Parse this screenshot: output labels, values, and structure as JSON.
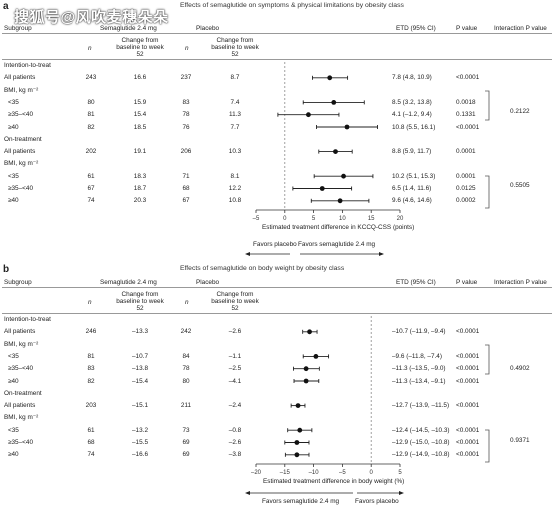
{
  "watermark": "搜狐号@风吹麦穗朵朵",
  "columns": {
    "subgroup": "Subgroup",
    "sema": "Semaglutide 2.4 mg",
    "placebo": "Placebo",
    "n": "n",
    "change": "Change from baseline to week 52",
    "etd": "ETD (95% CI)",
    "p": "P value",
    "interaction": "Interaction P value"
  },
  "panels": [
    {
      "letter": "a",
      "title": "Effects of semaglutide on symptoms & physical limitations by obesity class",
      "xlabel": "Estimated treatment difference in KCCQ-CSS (points)",
      "favors_left": "Favors placebo",
      "favors_right": "Favors semaglutide 2.4 mg",
      "rows": [
        {
          "label": "Intention-to-treat",
          "type": "section"
        },
        {
          "label": "All patients",
          "type": "data",
          "n1": "243",
          "c1": "16.6",
          "n2": "237",
          "c2": "8.7",
          "etd": "7.8 (4.8, 10.9)",
          "p": "<0.0001"
        },
        {
          "label": "BMI, kg m⁻²",
          "type": "section"
        },
        {
          "label": "<35",
          "type": "data",
          "n1": "80",
          "c1": "15.9",
          "n2": "83",
          "c2": "7.4",
          "etd": "8.5 (3.2, 13.8)",
          "p": "0.0018"
        },
        {
          "label": "≥35–<40",
          "type": "data",
          "n1": "81",
          "c1": "15.4",
          "n2": "78",
          "c2": "11.3",
          "etd": "4.1 (–1.2, 9.4)",
          "p": "0.1331"
        },
        {
          "label": "≥40",
          "type": "data",
          "n1": "82",
          "c1": "18.5",
          "n2": "76",
          "c2": "7.7",
          "etd": "10.8 (5.5, 16.1)",
          "p": "<0.0001"
        },
        {
          "label": "On-treatment",
          "type": "section"
        },
        {
          "label": "All patients",
          "type": "data",
          "n1": "202",
          "c1": "19.1",
          "n2": "206",
          "c2": "10.3",
          "etd": "8.8 (5.9, 11.7)",
          "p": "0.0001"
        },
        {
          "label": "BMI, kg m⁻²",
          "type": "section"
        },
        {
          "label": "<35",
          "type": "data",
          "n1": "61",
          "c1": "18.3",
          "n2": "71",
          "c2": "8.1",
          "etd": "10.2 (5.1, 15.3)",
          "p": "0.0001"
        },
        {
          "label": "≥35–<40",
          "type": "data",
          "n1": "67",
          "c1": "18.7",
          "n2": "68",
          "c2": "12.2",
          "etd": "6.5 (1.4, 11.6)",
          "p": "0.0125"
        },
        {
          "label": "≥40",
          "type": "data",
          "n1": "74",
          "c1": "20.3",
          "n2": "67",
          "c2": "10.8",
          "etd": "9.6 (4.6, 14.6)",
          "p": "0.0002"
        }
      ],
      "interactions": [
        "0.2122",
        "0.5505"
      ]
    },
    {
      "letter": "b",
      "title": "Effects of semaglutide on body weight by obesity class",
      "xlabel": "Estimated treatment difference in body weight (%)",
      "favors_left": "Favors semaglutide 2.4 mg",
      "favors_right": "Favors placebo",
      "rows": [
        {
          "label": "Intention-to-treat",
          "type": "section"
        },
        {
          "label": "All patients",
          "type": "data",
          "n1": "246",
          "c1": "–13.3",
          "n2": "242",
          "c2": "–2.6",
          "etd": "–10.7 (–11.9, –9.4)",
          "p": "<0.0001"
        },
        {
          "label": "BMI, kg m⁻²",
          "type": "section"
        },
        {
          "label": "<35",
          "type": "data",
          "n1": "81",
          "c1": "–10.7",
          "n2": "84",
          "c2": "–1.1",
          "etd": "–9.6 (–11.8, –7.4)",
          "p": "<0.0001"
        },
        {
          "label": "≥35–<40",
          "type": "data",
          "n1": "83",
          "c1": "–13.8",
          "n2": "78",
          "c2": "–2.5",
          "etd": "–11.3 (–13.5, –9.0)",
          "p": "<0.0001"
        },
        {
          "label": "≥40",
          "type": "data",
          "n1": "82",
          "c1": "–15.4",
          "n2": "80",
          "c2": "–4.1",
          "etd": "–11.3 (–13.4, –9.1)",
          "p": "<0.0001"
        },
        {
          "label": "On-treatment",
          "type": "section"
        },
        {
          "label": "All patients",
          "type": "data",
          "n1": "203",
          "c1": "–15.1",
          "n2": "211",
          "c2": "–2.4",
          "etd": "–12.7 (–13.9, –11.5)",
          "p": "<0.0001"
        },
        {
          "label": "BMI, kg m⁻²",
          "type": "section"
        },
        {
          "label": "<35",
          "type": "data",
          "n1": "61",
          "c1": "–13.2",
          "n2": "73",
          "c2": "–0.8",
          "etd": "–12.4 (–14.5, –10.3)",
          "p": "<0.0001"
        },
        {
          "label": "≥35–<40",
          "type": "data",
          "n1": "68",
          "c1": "–15.5",
          "n2": "69",
          "c2": "–2.6",
          "etd": "–12.9 (–15.0, –10.8)",
          "p": "<0.0001"
        },
        {
          "label": "≥40",
          "type": "data",
          "n1": "74",
          "c1": "–16.6",
          "n2": "69",
          "c2": "–3.8",
          "etd": "–12.9 (–14.9, –10.8)",
          "p": "<0.0001"
        }
      ],
      "interactions": [
        "0.4902",
        "0.9371"
      ]
    }
  ],
  "chart_data": [
    {
      "type": "forest",
      "title": "Effects of semaglutide on symptoms & physical limitations by obesity class",
      "xlabel": "Estimated treatment difference in KCCQ-CSS (points)",
      "xlim": [
        -5,
        20
      ],
      "xticks": [
        "–5",
        "0",
        "5",
        "10",
        "15",
        "20"
      ],
      "xtick_values": [
        -5,
        0,
        5,
        10,
        15,
        20
      ],
      "reference_line": 0,
      "points": [
        {
          "est": 7.8,
          "lo": 4.8,
          "hi": 10.9
        },
        null,
        {
          "est": 8.5,
          "lo": 3.2,
          "hi": 13.8
        },
        {
          "est": 4.1,
          "lo": -1.2,
          "hi": 9.4
        },
        {
          "est": 10.8,
          "lo": 5.5,
          "hi": 16.1
        },
        null,
        {
          "est": 8.8,
          "lo": 5.9,
          "hi": 11.7
        },
        null,
        {
          "est": 10.2,
          "lo": 5.1,
          "hi": 15.3
        },
        {
          "est": 6.5,
          "lo": 1.4,
          "hi": 11.6
        },
        {
          "est": 9.6,
          "lo": 4.6,
          "hi": 14.6
        }
      ]
    },
    {
      "type": "forest",
      "title": "Effects of semaglutide on body weight by obesity class",
      "xlabel": "Estimated treatment difference in body weight (%)",
      "xlim": [
        -20,
        5
      ],
      "xticks": [
        "–20",
        "–15",
        "–10",
        "–5",
        "0",
        "5"
      ],
      "xtick_values": [
        -20,
        -15,
        -10,
        -5,
        0,
        5
      ],
      "reference_line": 0,
      "points": [
        {
          "est": -10.7,
          "lo": -11.9,
          "hi": -9.4
        },
        null,
        {
          "est": -9.6,
          "lo": -11.8,
          "hi": -7.4
        },
        {
          "est": -11.3,
          "lo": -13.5,
          "hi": -9.0
        },
        {
          "est": -11.3,
          "lo": -13.4,
          "hi": -9.1
        },
        null,
        {
          "est": -12.7,
          "lo": -13.9,
          "hi": -11.5
        },
        null,
        {
          "est": -12.4,
          "lo": -14.5,
          "hi": -10.3
        },
        {
          "est": -12.9,
          "lo": -15.0,
          "hi": -10.8
        },
        {
          "est": -12.9,
          "lo": -14.9,
          "hi": -10.8
        }
      ]
    }
  ]
}
